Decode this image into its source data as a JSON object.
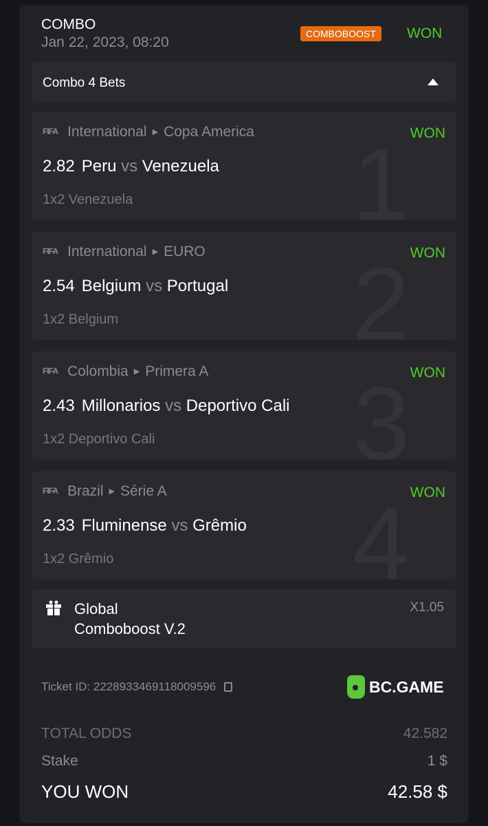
{
  "header": {
    "title": "COMBO",
    "date": "Jan 22, 2023, 08:20",
    "badge": "COMBOBOOST",
    "status": "WON"
  },
  "colors": {
    "won": "#4fcd23",
    "badge": "#e56a12",
    "brand": "#5cc83a"
  },
  "combo": {
    "label": "Combo 4 Bets",
    "toggle_icon": "caret-up-icon"
  },
  "bets": [
    {
      "index": "1",
      "provider": "FIFA",
      "country": "International",
      "league": "Copa America",
      "status": "WON",
      "odds": "2.82",
      "home": "Peru",
      "vs": "vs",
      "away": "Venezuela",
      "market": "1x2 Venezuela"
    },
    {
      "index": "2",
      "provider": "FIFA",
      "country": "International",
      "league": "EURO",
      "status": "WON",
      "odds": "2.54",
      "home": "Belgium",
      "vs": "vs",
      "away": "Portugal",
      "market": "1x2 Belgium"
    },
    {
      "index": "3",
      "provider": "FIFA",
      "country": "Colombia",
      "league": "Primera A",
      "status": "WON",
      "odds": "2.43",
      "home": "Millonarios",
      "vs": "vs",
      "away": "Deportivo Cali",
      "market": "1x2 Deportivo Cali"
    },
    {
      "index": "4",
      "provider": "FIFA",
      "country": "Brazil",
      "league": "Série A",
      "status": "WON",
      "odds": "2.33",
      "home": "Fluminense",
      "vs": "vs",
      "away": "Grêmio",
      "market": "1x2 Grêmio"
    }
  ],
  "boost": {
    "line1": "Global",
    "line2": "Comboboost V.2",
    "multiplier": "X1.05"
  },
  "ticket": {
    "label": "Ticket ID: 2228933469118009596"
  },
  "brand": {
    "name": "BC.GAME"
  },
  "summary": {
    "total_odds_label": "TOTAL ODDS",
    "total_odds": "42.582",
    "stake_label": "Stake",
    "stake": "1 $",
    "won_label": "YOU WON",
    "won": "42.58 $"
  }
}
